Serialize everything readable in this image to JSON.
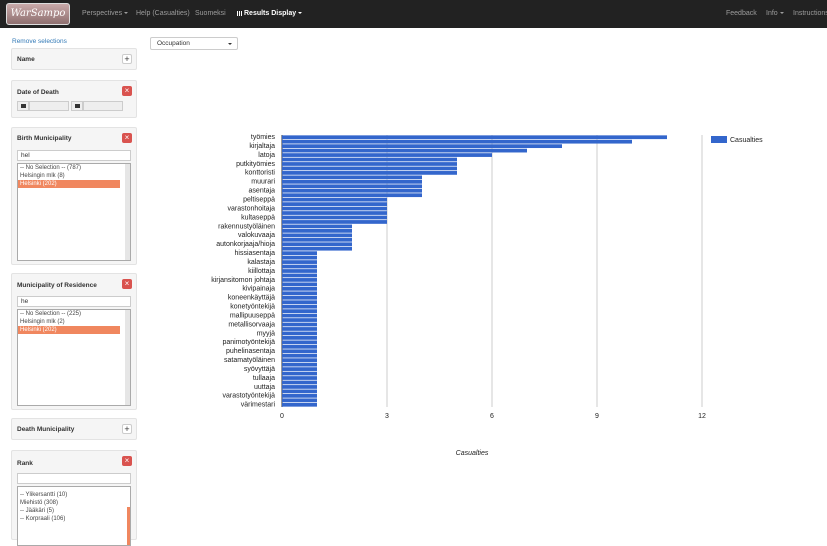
{
  "navbar": {
    "brand": "WarSampo",
    "items": [
      "Perspectives",
      "Help (Casualties)",
      "Suomeksi",
      "Results Display"
    ],
    "right_items": [
      "Feedback",
      "Info",
      "Instructions"
    ]
  },
  "sidebar": {
    "remove_link": "Remove selections",
    "facets": [
      {
        "title": "Name"
      },
      {
        "title": "Date of Death"
      },
      {
        "title": "Birth Municipality",
        "search": "hel",
        "options": [
          "-- No Selection -- (787)",
          "Helsingin mlk (8)",
          "Helsinki (202)"
        ],
        "selected_option": 2
      },
      {
        "title": "Municipality of Residence",
        "search": "he",
        "options": [
          "-- No Selection -- (225)",
          "Helsingin mlk (2)",
          "Helsinki (202)"
        ],
        "selected_option": 2
      },
      {
        "title": "Death Municipality"
      },
      {
        "title": "Rank",
        "options": [
          "-- Ylikersantti (10)",
          "Miehistö (308)",
          "-- Jääkäri (5)",
          "-- Korpraali (106)"
        ]
      }
    ]
  },
  "result_selector": "Occupation",
  "chart_data": {
    "type": "hbar",
    "x_label": "Casualties",
    "color": "#3366cc",
    "grid": true,
    "legend": "top-right",
    "categories": [
      "työmies",
      null,
      "kirjaltaja",
      null,
      "latoja",
      null,
      "putkityömies",
      null,
      "konttoristi",
      null,
      "muurari",
      null,
      "asentaja",
      null,
      "peltiseppä",
      null,
      "varastonhoitaja",
      null,
      "kultaseppä",
      null,
      "rakennustyöläinen",
      null,
      "valokuvaaja",
      null,
      "autonkorjaaja/hioja",
      null,
      "hissiasentaja",
      null,
      "kalastaja",
      null,
      "kiillottaja",
      null,
      "kirjansitomon johtaja",
      null,
      "kivipainaja",
      null,
      "koneenkäyttäjä",
      null,
      "konetyöntekijä",
      null,
      "mallipuuseppä",
      null,
      "metallisorvaaja",
      null,
      "myyjä",
      null,
      "panimotyöntekijä",
      null,
      "puhelinasentaja",
      null,
      "satamatyöläinen",
      null,
      "syövyttäjä",
      null,
      "tullaaja",
      null,
      "uuttaja",
      null,
      "varastotyöntekijä",
      null,
      "värimestari"
    ],
    "series": [
      {
        "name": "Casualties",
        "color": "#3366cc",
        "values": [
          11,
          10,
          8,
          7,
          6,
          5,
          5,
          5,
          5,
          4,
          4,
          4,
          4,
          4,
          3,
          3,
          3,
          3,
          3,
          3,
          2,
          2,
          2,
          2,
          2,
          2,
          1,
          1,
          1,
          1,
          1,
          1,
          1,
          1,
          1,
          1,
          1,
          1,
          1,
          1,
          1,
          1,
          1,
          1,
          1,
          1,
          1,
          1,
          1,
          1,
          1,
          1,
          1,
          1,
          1,
          1,
          1,
          1,
          1,
          1,
          1
        ]
      }
    ],
    "xlim": [
      0,
      12
    ],
    "xticks": [
      0,
      3,
      6,
      9,
      12
    ]
  }
}
